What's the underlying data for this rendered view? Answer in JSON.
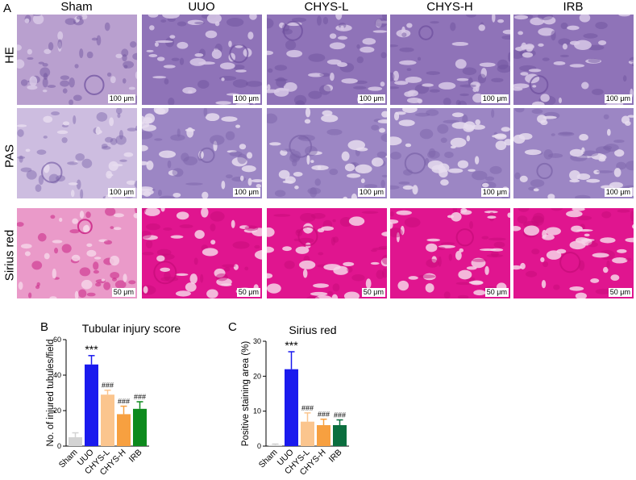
{
  "panel_a": {
    "letter": "A",
    "columns": [
      "Sham",
      "UUO",
      "CHYS-L",
      "CHYS-H",
      "IRB"
    ],
    "rows": [
      {
        "label": "HE",
        "scalebar": "100 μm",
        "palette": [
          "#b9a0cf",
          "#8f73b8",
          "#d8c9e6",
          "#6c4f9c"
        ]
      },
      {
        "label": "PAS",
        "scalebar": "100 μm",
        "palette": [
          "#cdbde0",
          "#9c86c4",
          "#e6dcef",
          "#7a62a8"
        ]
      },
      {
        "label": "Sirius red",
        "scalebar": "50 μm",
        "palette": [
          "#ea9ac9",
          "#e0158f",
          "#f6d4e7",
          "#c40c78"
        ]
      }
    ]
  },
  "panel_b": {
    "letter": "B"
  },
  "panel_c": {
    "letter": "C"
  },
  "chart_data": [
    {
      "type": "bar",
      "title": "Tubular injury score",
      "ylabel": "No. of injured tubules/field",
      "xlabel": "",
      "categories": [
        "Sham",
        "UUO",
        "CHYS-L",
        "CHYS-H",
        "IRB"
      ],
      "values": [
        5,
        46,
        29,
        18,
        21
      ],
      "errors": [
        2.5,
        5,
        2.5,
        4.5,
        4
      ],
      "annotations": [
        "",
        "***",
        "###",
        "###",
        "###"
      ],
      "colors": [
        "#d3d3d3",
        "#1a1aee",
        "#fbc58e",
        "#f7a040",
        "#0d8a1d"
      ],
      "ylim": [
        0,
        60
      ],
      "yticks": [
        0,
        20,
        40,
        60
      ]
    },
    {
      "type": "bar",
      "title": "Sirius red",
      "ylabel": "Positive staining area (%)",
      "xlabel": "",
      "categories": [
        "Sham",
        "UUO",
        "CHYS-L",
        "CHYS-H",
        "IRB"
      ],
      "values": [
        0.3,
        22,
        7,
        6,
        6
      ],
      "errors": [
        0.3,
        5,
        2.5,
        1.7,
        1.5
      ],
      "annotations": [
        "",
        "***",
        "###",
        "###",
        "###"
      ],
      "colors": [
        "#d3d3d3",
        "#1a1aee",
        "#fbc58e",
        "#f7a040",
        "#0b6e3e"
      ],
      "ylim": [
        0,
        30
      ],
      "yticks": [
        0,
        10,
        20,
        30
      ]
    }
  ]
}
